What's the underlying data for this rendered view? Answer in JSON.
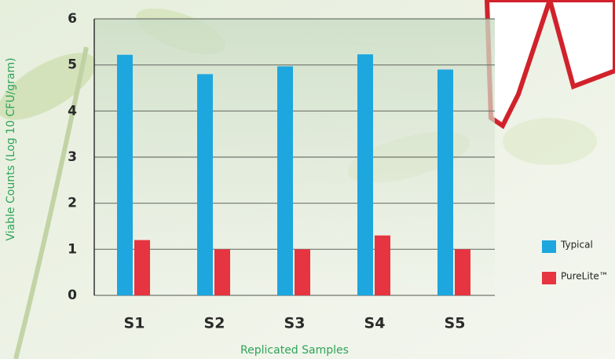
{
  "chart_data": {
    "type": "bar",
    "x_label": "Replicated Samples",
    "y_label": "Viable Counts (Log 10 CFU/gram)",
    "categories": [
      "S1",
      "S2",
      "S3",
      "S4",
      "S5"
    ],
    "series": [
      {
        "name": "Typical",
        "color": "#1ea6df",
        "values": [
          5.22,
          4.8,
          4.97,
          5.23,
          4.9
        ]
      },
      {
        "name": "PureLite™",
        "color": "#e63440",
        "values": [
          1.2,
          1.0,
          1.0,
          1.3,
          1.0
        ]
      }
    ],
    "ylim": [
      0,
      6
    ],
    "yticks": [
      0,
      1,
      2,
      3,
      4,
      5,
      6
    ],
    "grid": true
  }
}
